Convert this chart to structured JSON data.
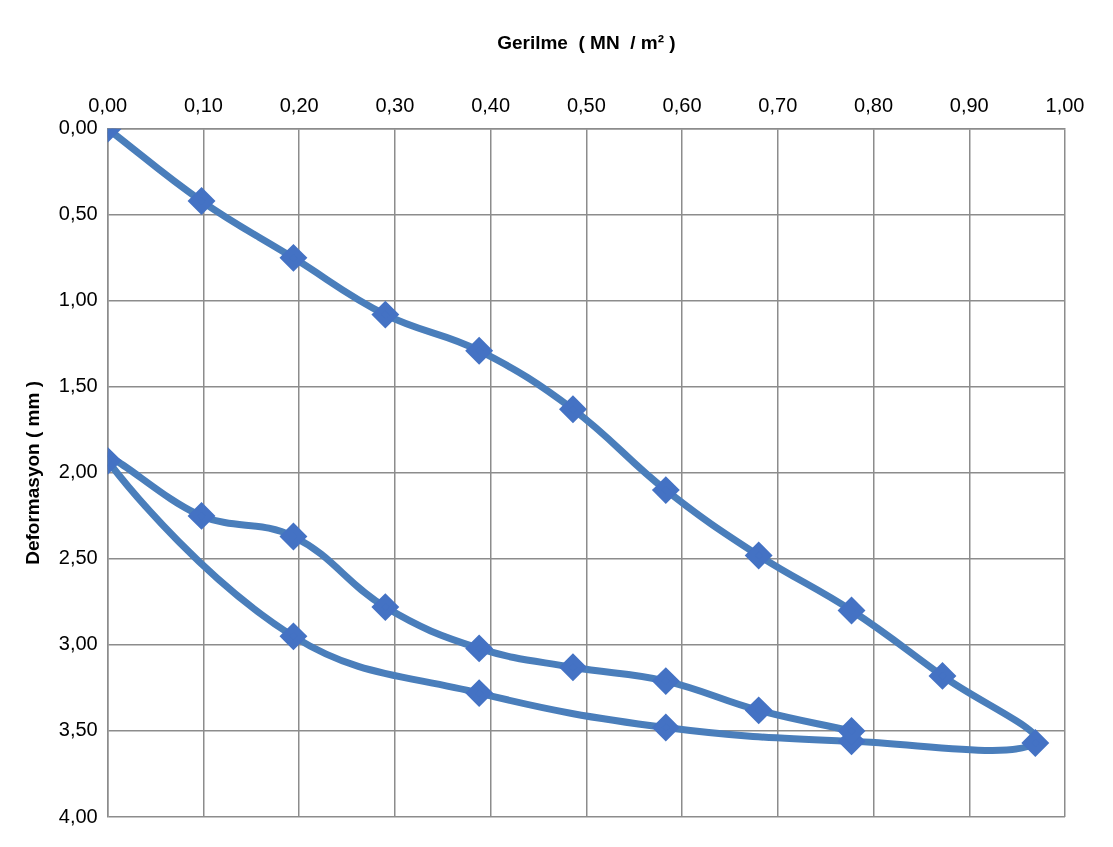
{
  "chart_data": {
    "type": "line",
    "xlabel": "Gerilme  ( MN  / m² )",
    "ylabel": "Deformasyon ( mm )",
    "series": [
      {
        "color": "#4a7ebb",
        "x": [
          0,
          0.098,
          0.194,
          0.29,
          0.388,
          0.486,
          0.583,
          0.68,
          0.777,
          0.872,
          0.969,
          0.777,
          0.583,
          0.388,
          0.194,
          0,
          0.098,
          0.194,
          0.29,
          0.388,
          0.486,
          0.583,
          0.68,
          0.777
        ],
        "values": [
          0,
          0.42,
          0.75,
          1.08,
          1.29,
          1.63,
          2.1,
          2.48,
          2.8,
          3.18,
          3.57,
          3.56,
          3.48,
          3.28,
          2.95,
          1.93,
          2.25,
          2.37,
          2.78,
          3.02,
          3.13,
          3.21,
          3.38,
          3.5
        ]
      }
    ],
    "xlim": [
      0,
      1
    ],
    "ylim": [
      4,
      0
    ],
    "xticks": [
      {
        "value": 0,
        "label": "0,00"
      },
      {
        "value": 0.1,
        "label": "0,10"
      },
      {
        "value": 0.2,
        "label": "0,20"
      },
      {
        "value": 0.3,
        "label": "0,30"
      },
      {
        "value": 0.4,
        "label": "0,40"
      },
      {
        "value": 0.5,
        "label": "0,50"
      },
      {
        "value": 0.6,
        "label": "0,60"
      },
      {
        "value": 0.7,
        "label": "0,70"
      },
      {
        "value": 0.8,
        "label": "0,80"
      },
      {
        "value": 0.9,
        "label": "0,90"
      },
      {
        "value": 1,
        "label": "1,00"
      }
    ],
    "yticks": [
      {
        "value": 0,
        "label": "0,00"
      },
      {
        "value": 0.5,
        "label": "0,50"
      },
      {
        "value": 1,
        "label": "1,00"
      },
      {
        "value": 1.5,
        "label": "1,50"
      },
      {
        "value": 2,
        "label": "2,00"
      },
      {
        "value": 2.5,
        "label": "2,50"
      },
      {
        "value": 3,
        "label": "3,00"
      },
      {
        "value": 3.5,
        "label": "3,50"
      },
      {
        "value": 4,
        "label": "4,00"
      }
    ],
    "grid": true,
    "legend": false,
    "marker": "diamond",
    "line_style": "solid"
  }
}
